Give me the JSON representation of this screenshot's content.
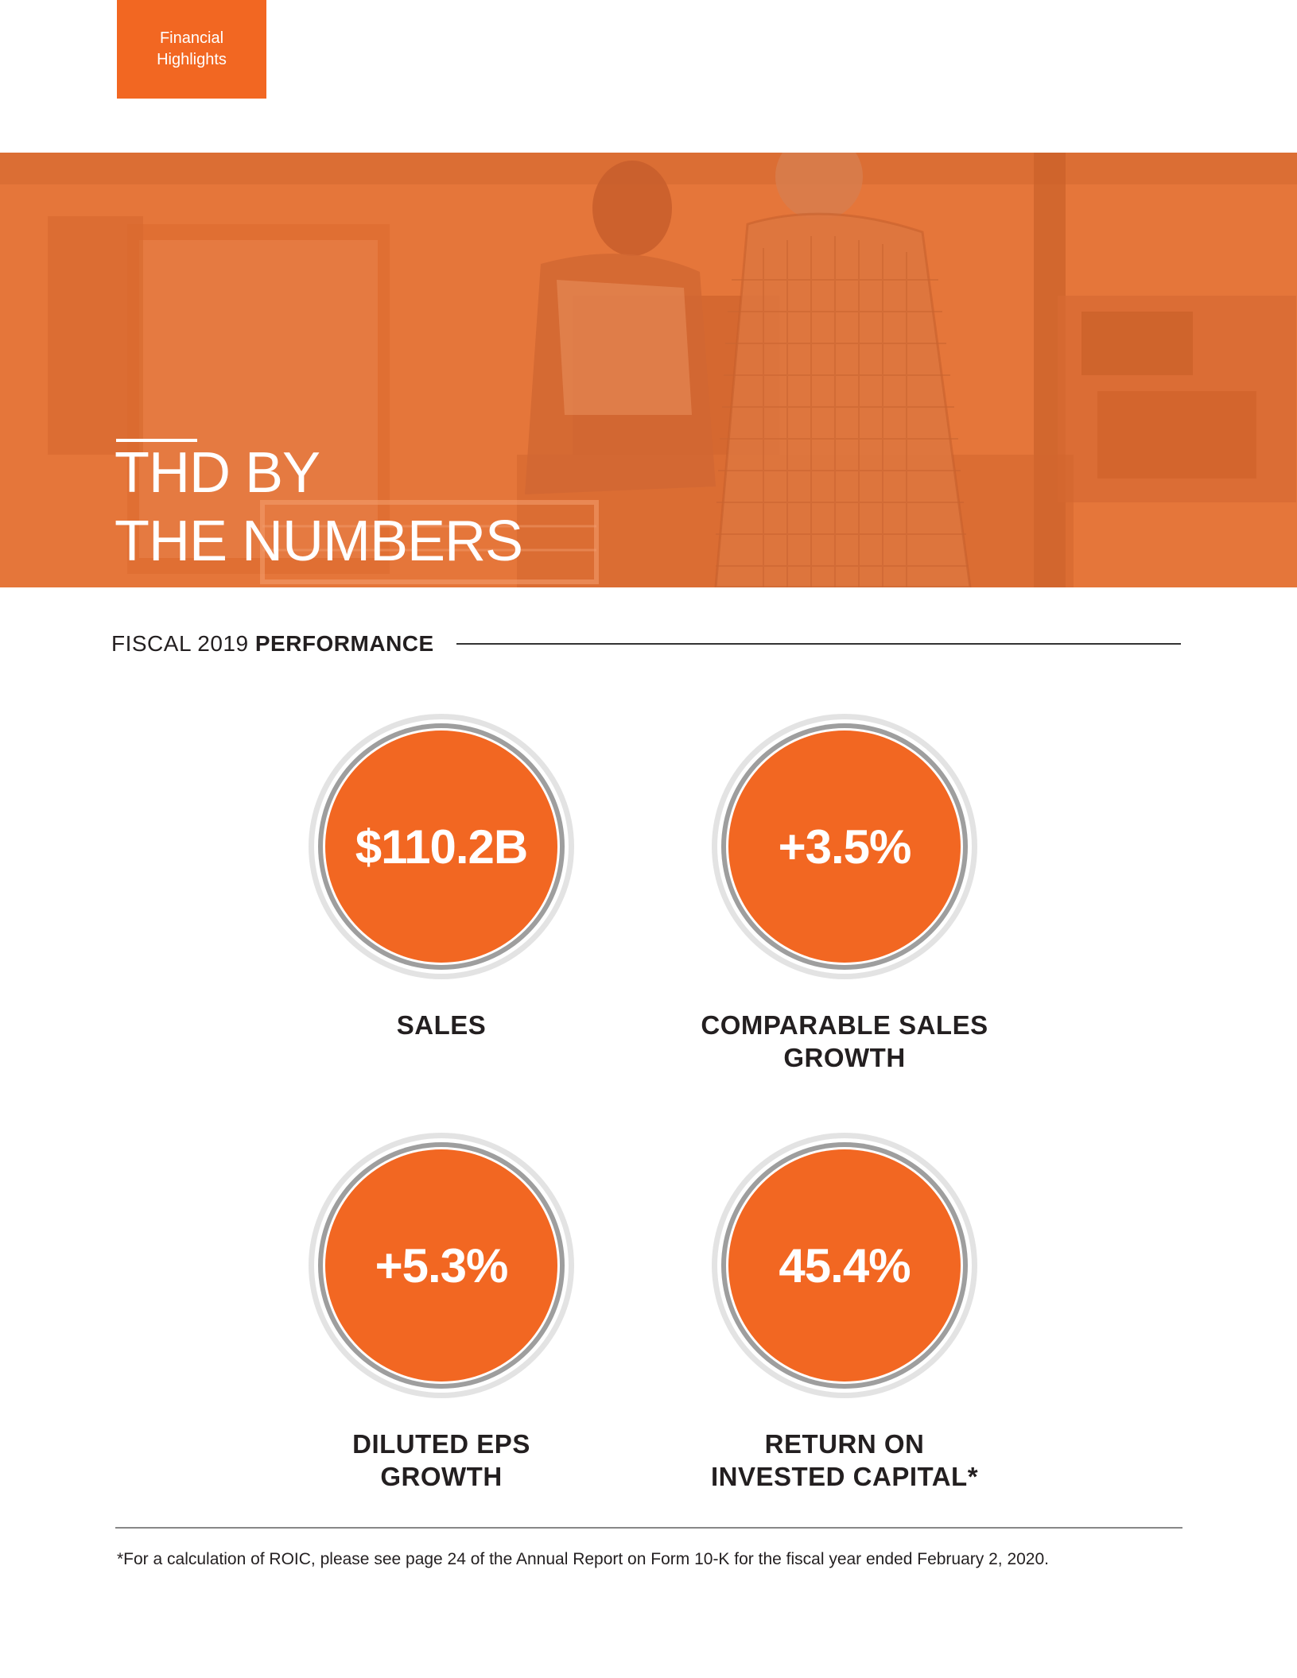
{
  "tab": {
    "line1": "Financial",
    "line2": "Highlights"
  },
  "hero": {
    "title_line1": "THD BY",
    "title_line2": "THE NUMBERS"
  },
  "section": {
    "light": "FISCAL 2019 ",
    "bold": "PERFORMANCE"
  },
  "metrics": [
    {
      "value": "$110.2B",
      "label_line1": "SALES",
      "label_line2": ""
    },
    {
      "value": "+3.5%",
      "label_line1": "COMPARABLE SALES",
      "label_line2": "GROWTH"
    },
    {
      "value": "+5.3%",
      "label_line1": "DILUTED EPS",
      "label_line2": "GROWTH"
    },
    {
      "value": "45.4%",
      "label_line1": "RETURN ON",
      "label_line2": "INVESTED CAPITAL*"
    }
  ],
  "footnote": "*For a calculation of ROIC, please see page 24 of the Annual Report on Form 10-K for the fiscal year ended February 2, 2020.",
  "colors": {
    "accent": "#f26722",
    "hero_tint": "#e8763c",
    "ring_gray": "#bdbdbd"
  },
  "icons": {
    "hero_image": "store-checkout-photo"
  }
}
